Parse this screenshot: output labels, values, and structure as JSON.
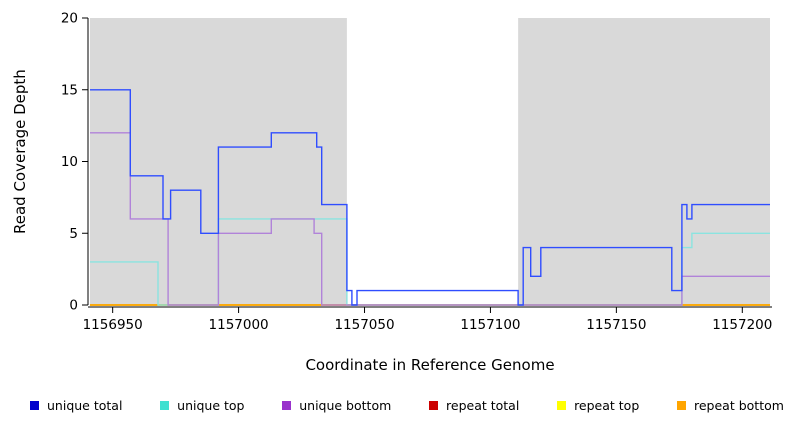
{
  "chart_data": {
    "type": "line",
    "step": "after",
    "title": "",
    "xlabel": "Coordinate in Reference Genome",
    "ylabel": "Read Coverage Depth",
    "xlim": [
      1156941,
      1157211
    ],
    "ylim": [
      0,
      20
    ],
    "x_ticks": [
      1156950,
      1157000,
      1157050,
      1157100,
      1157150,
      1157200
    ],
    "y_ticks": [
      0,
      5,
      10,
      15,
      20
    ],
    "plot_background": "#ffffff",
    "background_bands": [
      {
        "from": 1156941,
        "to": 1157043,
        "color": "#d9d9d9"
      },
      {
        "from": 1157111,
        "to": 1157211,
        "color": "#d9d9d9"
      }
    ],
    "series": [
      {
        "name": "repeat total",
        "color": "#cc0000",
        "points": [
          [
            1156941,
            0
          ],
          [
            1157211,
            0
          ]
        ]
      },
      {
        "name": "repeat top",
        "color": "#ffff00",
        "points": [
          [
            1156941,
            0
          ],
          [
            1157211,
            0
          ]
        ]
      },
      {
        "name": "repeat bottom",
        "color": "#ffa500",
        "points": [
          [
            1156941,
            0
          ],
          [
            1157211,
            0
          ]
        ]
      },
      {
        "name": "unique top",
        "color": "#8ae4e0",
        "points": [
          [
            1156941,
            3
          ],
          [
            1156968,
            0
          ],
          [
            1156992,
            6
          ],
          [
            1157043,
            0
          ],
          [
            1157176,
            4
          ],
          [
            1157180,
            5
          ],
          [
            1157211,
            5
          ]
        ]
      },
      {
        "name": "unique bottom",
        "color": "#b183d9",
        "points": [
          [
            1156941,
            12
          ],
          [
            1156957,
            6
          ],
          [
            1156972,
            0
          ],
          [
            1156992,
            5
          ],
          [
            1157013,
            6
          ],
          [
            1157030,
            5
          ],
          [
            1157033,
            0
          ],
          [
            1157176,
            2
          ],
          [
            1157211,
            2
          ]
        ]
      },
      {
        "name": "unique total",
        "color": "#2f4dff",
        "points": [
          [
            1156941,
            15
          ],
          [
            1156957,
            9
          ],
          [
            1156970,
            6
          ],
          [
            1156973,
            8
          ],
          [
            1156985,
            5
          ],
          [
            1156992,
            11
          ],
          [
            1157013,
            12
          ],
          [
            1157031,
            11
          ],
          [
            1157033,
            7
          ],
          [
            1157043,
            1
          ],
          [
            1157045,
            0
          ],
          [
            1157047,
            1
          ],
          [
            1157111,
            0
          ],
          [
            1157113,
            4
          ],
          [
            1157116,
            2
          ],
          [
            1157120,
            4
          ],
          [
            1157172,
            1
          ],
          [
            1157176,
            7
          ],
          [
            1157178,
            6
          ],
          [
            1157180,
            7
          ],
          [
            1157211,
            7
          ]
        ]
      }
    ],
    "legend": [
      {
        "label": "unique total",
        "color": "#0000cc"
      },
      {
        "label": "unique top",
        "color": "#40e0d0"
      },
      {
        "label": "unique bottom",
        "color": "#9932cc"
      },
      {
        "label": "repeat total",
        "color": "#cc0000"
      },
      {
        "label": "repeat top",
        "color": "#ffff00"
      },
      {
        "label": "repeat bottom",
        "color": "#ffa500"
      }
    ]
  }
}
